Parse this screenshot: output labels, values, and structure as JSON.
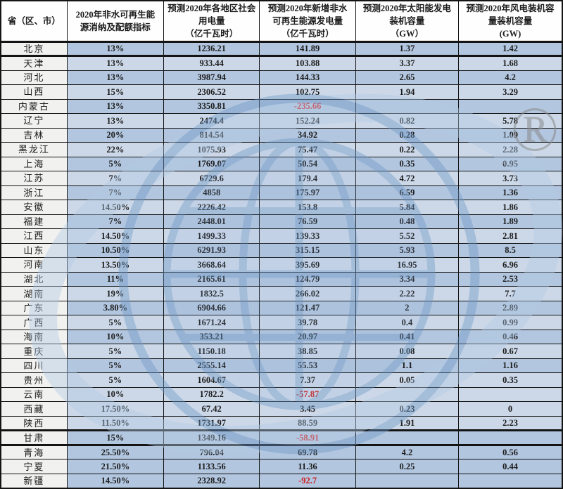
{
  "colors": {
    "row_dark": "#b2c6df",
    "row_light": "#ccd8e8",
    "province_col": "#f1f1ef",
    "header_bg": "#fefefe",
    "border": "#141414",
    "text": "#1c1c1c",
    "negative_text": "#cc1f1f",
    "watermark_blue": "#6f98c6",
    "watermark_swoosh": "#b3cbe6",
    "registered_gray": "#8a8a8a"
  },
  "watermark": {
    "type": "globe-orbit-logo",
    "registered_symbol": "®"
  },
  "table": {
    "columns": [
      {
        "id": "province",
        "lines": [
          "省（区、市）"
        ]
      },
      {
        "id": "quota",
        "lines": [
          "2020年非水可再生能",
          "源消纳及配额指标"
        ]
      },
      {
        "id": "consumption",
        "lines": [
          "预测2020年各地区社会",
          "用电量",
          "（亿千瓦时）"
        ]
      },
      {
        "id": "new_renewable",
        "lines": [
          "预测2020年新增非水",
          "可再生能源发电量",
          "（亿千瓦时）"
        ]
      },
      {
        "id": "solar",
        "lines": [
          "预测2020年太阳能发电",
          "装机容量",
          "（GW）"
        ]
      },
      {
        "id": "wind",
        "lines": [
          "预测2020年风电装机容",
          "量装机容量",
          "(GW)"
        ]
      }
    ],
    "rows": [
      {
        "province": "北京",
        "quota": "13%",
        "consumption": "1236.21",
        "new_renewable": "141.89",
        "solar": "1.37",
        "wind": "1.42",
        "shade": "d",
        "thick_bottom": true
      },
      {
        "province": "天津",
        "quota": "13%",
        "consumption": "933.44",
        "new_renewable": "103.88",
        "solar": "3.37",
        "wind": "1.68",
        "shade": "l",
        "thick_bottom": false
      },
      {
        "province": "河北",
        "quota": "13%",
        "consumption": "3987.94",
        "new_renewable": "144.33",
        "solar": "2.65",
        "wind": "4.2",
        "shade": "d",
        "thick_bottom": false
      },
      {
        "province": "山西",
        "quota": "15%",
        "consumption": "2306.52",
        "new_renewable": "102.75",
        "solar": "1.94",
        "wind": "3.29",
        "shade": "l",
        "thick_bottom": false
      },
      {
        "province": "内蒙古",
        "quota": "13%",
        "consumption": "3350.81",
        "new_renewable": "-235.66",
        "solar": "",
        "wind": "",
        "shade": "d",
        "thick_bottom": false
      },
      {
        "province": "辽宁",
        "quota": "13%",
        "consumption": "2474.4",
        "new_renewable": "152.24",
        "solar": "0.82",
        "wind": "5.78",
        "shade": "l",
        "thick_bottom": false
      },
      {
        "province": "吉林",
        "quota": "20%",
        "consumption": "814.54",
        "new_renewable": "34.92",
        "solar": "0.28",
        "wind": "1.09",
        "shade": "d",
        "thick_bottom": false
      },
      {
        "province": "黑龙江",
        "quota": "22%",
        "consumption": "1075.93",
        "new_renewable": "75.47",
        "solar": "0.22",
        "wind": "2.28",
        "shade": "l",
        "thick_bottom": false
      },
      {
        "province": "上海",
        "quota": "5%",
        "consumption": "1769.07",
        "new_renewable": "50.54",
        "solar": "0.35",
        "wind": "0.95",
        "shade": "d",
        "thick_bottom": false
      },
      {
        "province": "江苏",
        "quota": "7%",
        "consumption": "6729.6",
        "new_renewable": "179.4",
        "solar": "4.72",
        "wind": "3.73",
        "shade": "l",
        "thick_bottom": false
      },
      {
        "province": "浙江",
        "quota": "7%",
        "consumption": "4858",
        "new_renewable": "175.97",
        "solar": "6.59",
        "wind": "1.36",
        "shade": "d",
        "thick_bottom": false
      },
      {
        "province": "安徽",
        "quota": "14.50%",
        "consumption": "2226.42",
        "new_renewable": "153.8",
        "solar": "5.84",
        "wind": "1.86",
        "shade": "l",
        "thick_bottom": false
      },
      {
        "province": "福建",
        "quota": "7%",
        "consumption": "2448.01",
        "new_renewable": "76.59",
        "solar": "0.48",
        "wind": "1.89",
        "shade": "d",
        "thick_bottom": false
      },
      {
        "province": "江西",
        "quota": "14.50%",
        "consumption": "1499.33",
        "new_renewable": "139.33",
        "solar": "5.52",
        "wind": "2.81",
        "shade": "l",
        "thick_bottom": false
      },
      {
        "province": "山东",
        "quota": "10.50%",
        "consumption": "6291.93",
        "new_renewable": "315.15",
        "solar": "5.93",
        "wind": "8.5",
        "shade": "d",
        "thick_bottom": false
      },
      {
        "province": "河南",
        "quota": "13.50%",
        "consumption": "3668.64",
        "new_renewable": "395.69",
        "solar": "16.95",
        "wind": "6.96",
        "shade": "l",
        "thick_bottom": false
      },
      {
        "province": "湖北",
        "quota": "11%",
        "consumption": "2165.61",
        "new_renewable": "124.79",
        "solar": "3.34",
        "wind": "2.53",
        "shade": "d",
        "thick_bottom": false
      },
      {
        "province": "湖南",
        "quota": "19%",
        "consumption": "1832.5",
        "new_renewable": "266.02",
        "solar": "2.22",
        "wind": "7.7",
        "shade": "l",
        "thick_bottom": false
      },
      {
        "province": "广东",
        "quota": "3.80%",
        "consumption": "6904.66",
        "new_renewable": "121.47",
        "solar": "2",
        "wind": "2.89",
        "shade": "d",
        "thick_bottom": false
      },
      {
        "province": "广西",
        "quota": "5%",
        "consumption": "1671.24",
        "new_renewable": "39.78",
        "solar": "0.4",
        "wind": "0.99",
        "shade": "l",
        "thick_bottom": false
      },
      {
        "province": "海南",
        "quota": "10%",
        "consumption": "353.21",
        "new_renewable": "20.97",
        "solar": "0.41",
        "wind": "0.46",
        "shade": "d",
        "thick_bottom": false
      },
      {
        "province": "重庆",
        "quota": "5%",
        "consumption": "1150.18",
        "new_renewable": "38.85",
        "solar": "0.08",
        "wind": "0.67",
        "shade": "l",
        "thick_bottom": false
      },
      {
        "province": "四川",
        "quota": "5%",
        "consumption": "2555.14",
        "new_renewable": "55.53",
        "solar": "1.1",
        "wind": "1.16",
        "shade": "d",
        "thick_bottom": false
      },
      {
        "province": "贵州",
        "quota": "5%",
        "consumption": "1604.67",
        "new_renewable": "7.37",
        "solar": "0.05",
        "wind": "0.35",
        "shade": "l",
        "thick_bottom": false
      },
      {
        "province": "云南",
        "quota": "10%",
        "consumption": "1782.2",
        "new_renewable": "-57.87",
        "solar": "",
        "wind": "",
        "shade": "l",
        "thick_bottom": false
      },
      {
        "province": "西藏",
        "quota": "17.50%",
        "consumption": "67.42",
        "new_renewable": "3.45",
        "solar": "0.23",
        "wind": "0",
        "shade": "l",
        "thick_bottom": false
      },
      {
        "province": "陕西",
        "quota": "11.50%",
        "consumption": "1731.97",
        "new_renewable": "88.59",
        "solar": "1.91",
        "wind": "2.23",
        "shade": "l",
        "thick_bottom": true
      },
      {
        "province": "甘肃",
        "quota": "15%",
        "consumption": "1349.16",
        "new_renewable": "-58.91",
        "solar": "",
        "wind": "",
        "shade": "d",
        "thick_bottom": true
      },
      {
        "province": "青海",
        "quota": "25.50%",
        "consumption": "796.04",
        "new_renewable": "69.78",
        "solar": "4.2",
        "wind": "0.56",
        "shade": "d",
        "thick_bottom": false
      },
      {
        "province": "宁夏",
        "quota": "21.50%",
        "consumption": "1133.56",
        "new_renewable": "11.36",
        "solar": "0.25",
        "wind": "0.44",
        "shade": "d",
        "thick_bottom": false
      },
      {
        "province": "新疆",
        "quota": "14.50%",
        "consumption": "2328.92",
        "new_renewable": "-92.7",
        "solar": "",
        "wind": "",
        "shade": "d",
        "thick_bottom": false
      }
    ]
  }
}
